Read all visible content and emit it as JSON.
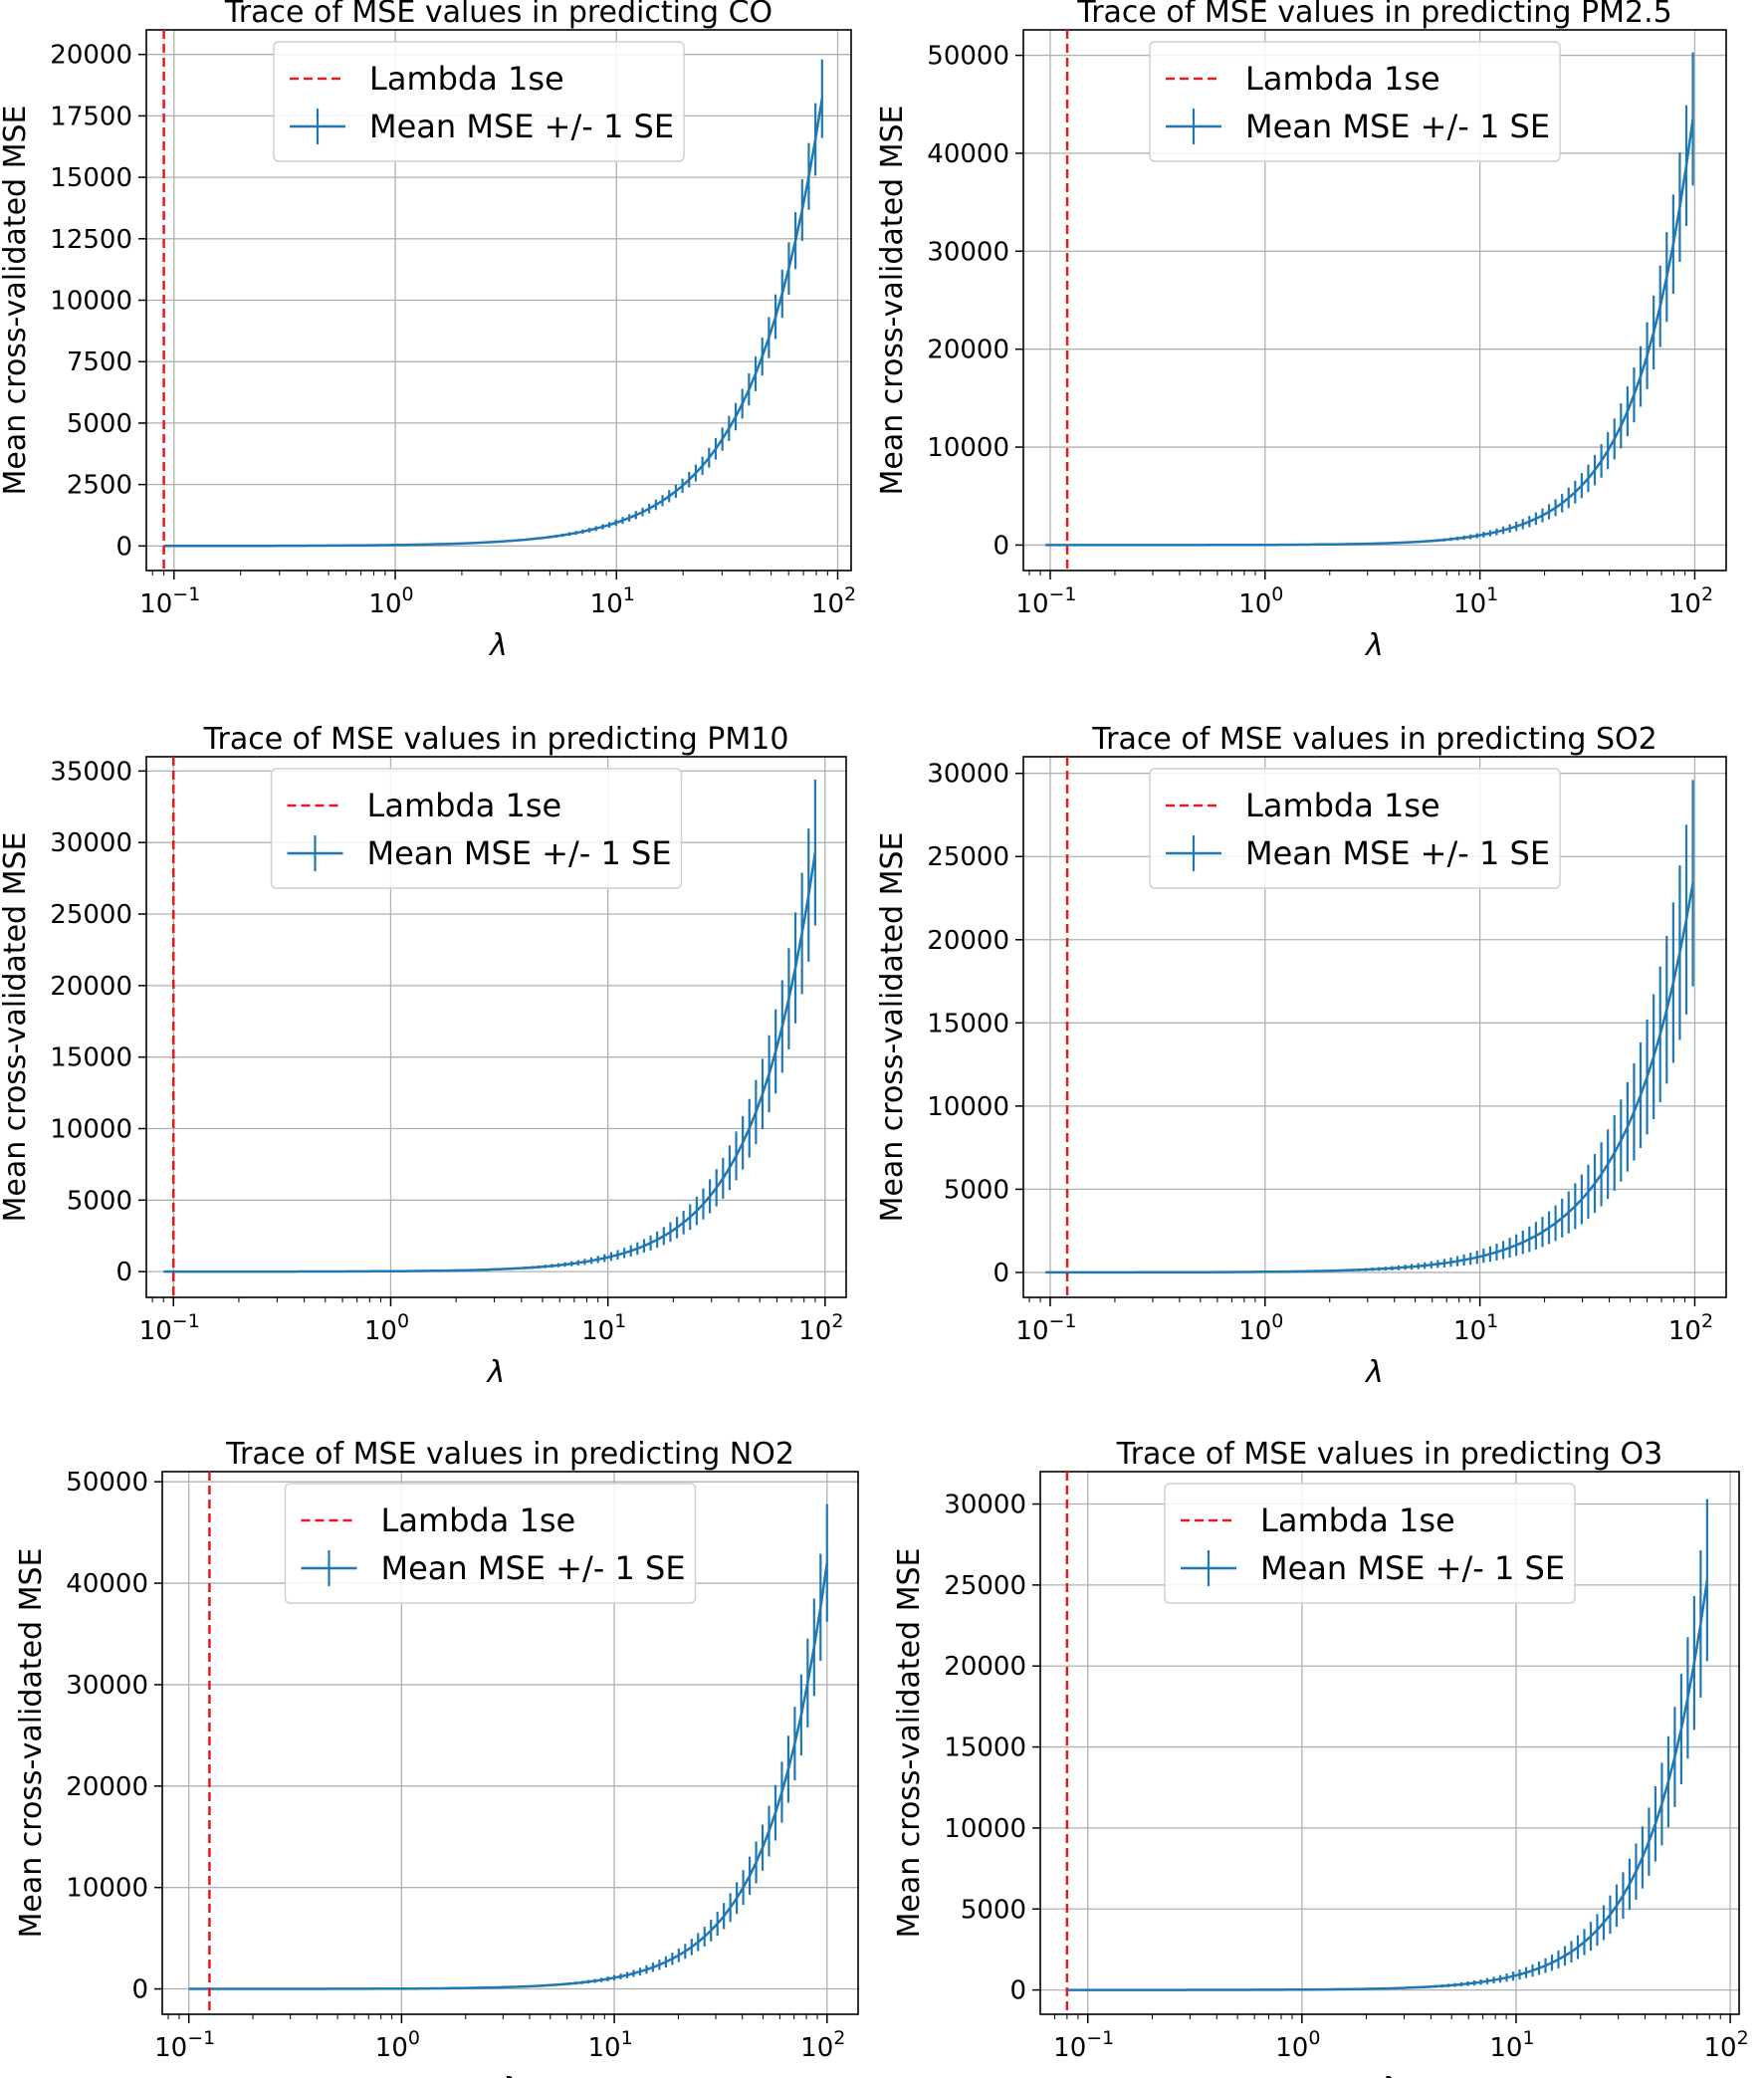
{
  "chart_data": [
    {
      "type": "line",
      "title": "Trace of MSE values in predicting CO",
      "xlabel": "λ",
      "ylabel": "Mean cross-validated MSE",
      "xscale": "log",
      "xlim": [
        0.075,
        115
      ],
      "ylim": [
        -1000,
        21000
      ],
      "yticks": [
        "0",
        "2500",
        "5000",
        "7500",
        "10000",
        "12500",
        "15000",
        "17500",
        "20000"
      ],
      "ytick_values": [
        0,
        2500,
        5000,
        7500,
        10000,
        12500,
        15000,
        17500,
        20000
      ],
      "xticks": [
        {
          "base": "10",
          "exp": "−1",
          "value": 0.1
        },
        {
          "base": "10",
          "exp": "0",
          "value": 1
        },
        {
          "base": "10",
          "exp": "1",
          "value": 10
        },
        {
          "base": "10",
          "exp": "2",
          "value": 100
        }
      ],
      "grid": true,
      "lambda_1se": 0.09,
      "lambda_min": 0.09,
      "lambda_max": 85,
      "curve": {
        "y_at_10": 950,
        "y_at_max": 18200,
        "se_at_max": 1600
      },
      "legend": {
        "position": "top-center",
        "entries": [
          "Lambda 1se",
          "Mean MSE +/- 1 SE"
        ]
      }
    },
    {
      "type": "line",
      "title": "Trace of MSE values in predicting PM2.5",
      "xlabel": "λ",
      "ylabel": "Mean cross-validated MSE",
      "xscale": "log",
      "xlim": [
        0.075,
        140
      ],
      "ylim": [
        -2600,
        52600
      ],
      "yticks": [
        "0",
        "10000",
        "20000",
        "30000",
        "40000",
        "50000"
      ],
      "ytick_values": [
        0,
        10000,
        20000,
        30000,
        40000,
        50000
      ],
      "xticks": [
        {
          "base": "10",
          "exp": "−1",
          "value": 0.1
        },
        {
          "base": "10",
          "exp": "0",
          "value": 1
        },
        {
          "base": "10",
          "exp": "1",
          "value": 10
        },
        {
          "base": "10",
          "exp": "2",
          "value": 100
        }
      ],
      "grid": true,
      "lambda_1se": 0.12,
      "lambda_min": 0.095,
      "lambda_max": 98,
      "curve": {
        "y_at_10": 1000,
        "y_at_max": 43500,
        "se_at_max": 6800
      },
      "legend": {
        "position": "top-center",
        "entries": [
          "Lambda 1se",
          "Mean MSE +/- 1 SE"
        ]
      }
    },
    {
      "type": "line",
      "title": "Trace of MSE values in predicting PM10",
      "xlabel": "λ",
      "ylabel": "Mean cross-validated MSE",
      "xscale": "log",
      "xlim": [
        0.075,
        125
      ],
      "ylim": [
        -1800,
        36000
      ],
      "yticks": [
        "0",
        "5000",
        "10000",
        "15000",
        "20000",
        "25000",
        "30000",
        "35000"
      ],
      "ytick_values": [
        0,
        5000,
        10000,
        15000,
        20000,
        25000,
        30000,
        35000
      ],
      "xticks": [
        {
          "base": "10",
          "exp": "−1",
          "value": 0.1
        },
        {
          "base": "10",
          "exp": "0",
          "value": 1
        },
        {
          "base": "10",
          "exp": "1",
          "value": 10
        },
        {
          "base": "10",
          "exp": "2",
          "value": 100
        }
      ],
      "grid": true,
      "lambda_1se": 0.1,
      "lambda_min": 0.09,
      "lambda_max": 90,
      "curve": {
        "y_at_10": 1000,
        "y_at_max": 29300,
        "se_at_max": 5100
      },
      "legend": {
        "position": "top-center",
        "entries": [
          "Lambda 1se",
          "Mean MSE +/- 1 SE"
        ]
      }
    },
    {
      "type": "line",
      "title": "Trace of MSE values in predicting SO2",
      "xlabel": "λ",
      "ylabel": "Mean cross-validated MSE",
      "xscale": "log",
      "xlim": [
        0.075,
        140
      ],
      "ylim": [
        -1500,
        31000
      ],
      "yticks": [
        "0",
        "5000",
        "10000",
        "15000",
        "20000",
        "25000",
        "30000"
      ],
      "ytick_values": [
        0,
        5000,
        10000,
        15000,
        20000,
        25000,
        30000
      ],
      "xticks": [
        {
          "base": "10",
          "exp": "−1",
          "value": 0.1
        },
        {
          "base": "10",
          "exp": "0",
          "value": 1
        },
        {
          "base": "10",
          "exp": "1",
          "value": 10
        },
        {
          "base": "10",
          "exp": "2",
          "value": 100
        }
      ],
      "grid": true,
      "lambda_1se": 0.12,
      "lambda_min": 0.095,
      "lambda_max": 98,
      "curve": {
        "y_at_10": 950,
        "y_at_max": 23400,
        "se_at_max": 6200
      },
      "legend": {
        "position": "top-center",
        "entries": [
          "Lambda 1se",
          "Mean MSE +/- 1 SE"
        ]
      }
    },
    {
      "type": "line",
      "title": "Trace of MSE values in predicting NO2",
      "xlabel": "λ",
      "ylabel": "Mean cross-validated MSE",
      "xscale": "log",
      "xlim": [
        0.075,
        140
      ],
      "ylim": [
        -2500,
        51000
      ],
      "yticks": [
        "0",
        "10000",
        "20000",
        "30000",
        "40000",
        "50000"
      ],
      "ytick_values": [
        0,
        10000,
        20000,
        30000,
        40000,
        50000
      ],
      "xticks": [
        {
          "base": "10",
          "exp": "−1",
          "value": 0.1
        },
        {
          "base": "10",
          "exp": "0",
          "value": 1
        },
        {
          "base": "10",
          "exp": "1",
          "value": 10
        },
        {
          "base": "10",
          "exp": "2",
          "value": 100
        }
      ],
      "grid": true,
      "lambda_1se": 0.125,
      "lambda_min": 0.1,
      "lambda_max": 100,
      "curve": {
        "y_at_10": 1100,
        "y_at_max": 42000,
        "se_at_max": 5800
      },
      "legend": {
        "position": "top-center",
        "entries": [
          "Lambda 1se",
          "Mean MSE +/- 1 SE"
        ]
      }
    },
    {
      "type": "line",
      "title": "Trace of MSE values in predicting O3",
      "xlabel": "λ",
      "ylabel": "Mean cross-validated MSE",
      "xscale": "log",
      "xlim": [
        0.06,
        110
      ],
      "ylim": [
        -1500,
        32000
      ],
      "yticks": [
        "0",
        "5000",
        "10000",
        "15000",
        "20000",
        "25000",
        "30000"
      ],
      "ytick_values": [
        0,
        5000,
        10000,
        15000,
        20000,
        25000,
        30000
      ],
      "xticks": [
        {
          "base": "10",
          "exp": "−1",
          "value": 0.1
        },
        {
          "base": "10",
          "exp": "0",
          "value": 1
        },
        {
          "base": "10",
          "exp": "1",
          "value": 10
        },
        {
          "base": "10",
          "exp": "2",
          "value": 100
        }
      ],
      "grid": true,
      "lambda_1se": 0.08,
      "lambda_min": 0.08,
      "lambda_max": 78,
      "curve": {
        "y_at_10": 900,
        "y_at_max": 25300,
        "se_at_max": 5000
      },
      "legend": {
        "position": "top-center",
        "entries": [
          "Lambda 1se",
          "Mean MSE +/- 1 SE"
        ]
      }
    }
  ],
  "colors": {
    "series": "#1f77b4",
    "lambda_line": "#e41a1c",
    "grid": "#b0b0b0",
    "axis": "#000000",
    "legend_border": "#d0d0d0"
  }
}
